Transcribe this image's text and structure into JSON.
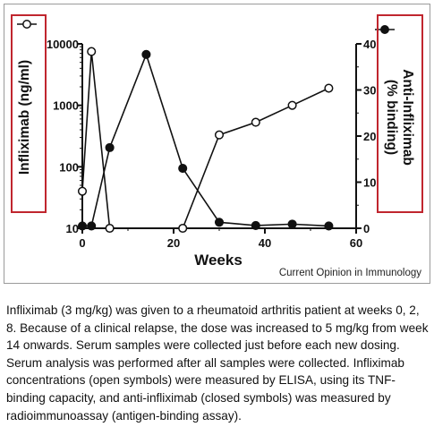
{
  "chart_data": {
    "type": "line",
    "title": "",
    "xlabel": "Weeks",
    "xlim": [
      0,
      60
    ],
    "x_ticks": [
      "0",
      "20",
      "40",
      "60"
    ],
    "y_left": {
      "label": "Infliximab (ng/ml)",
      "scale": "log",
      "lim": [
        10,
        10000
      ],
      "ticks": [
        "10",
        "100",
        "1000",
        "10000"
      ]
    },
    "y_right": {
      "label_line1": "Anti-Infliximab",
      "label_line2": "(% binding)",
      "scale": "linear",
      "lim": [
        0,
        40
      ],
      "ticks": [
        "0",
        "10",
        "20",
        "30",
        "40"
      ]
    },
    "series": [
      {
        "name": "Infliximab",
        "marker": "open-circle",
        "axis": "left",
        "x": [
          0,
          2,
          6,
          22,
          30,
          38,
          46,
          54
        ],
        "y": [
          40,
          7500,
          10,
          10,
          330,
          530,
          1000,
          1900
        ]
      },
      {
        "name": "Anti-infliximab",
        "marker": "filled-circle",
        "axis": "right",
        "x": [
          0,
          2,
          6,
          14,
          22,
          30,
          38,
          46,
          54
        ],
        "y": [
          0.5,
          0.5,
          17.5,
          37.7,
          13,
          1.3,
          0.6,
          0.9,
          0.5
        ]
      }
    ],
    "legend_marker_left": "open-circle",
    "legend_marker_right": "filled-circle",
    "highlight_color": "#c0262e",
    "source": "Current Opinion in Immunology"
  },
  "caption": "Infliximab (3 mg/kg) was given to a rheumatoid arthritis patient at weeks 0, 2, 8. Because of a clinical relapse, the dose was increased to 5 mg/kg from week 14 onwards. Serum samples were collected just before each new dosing. Serum analysis was performed after all samples were collected. Infliximab concentrations (open symbols) were measured by ELISA, using its TNF-binding capacity, and anti-infliximab (closed symbols) was measured by radioimmunoassay (antigen-binding assay)."
}
